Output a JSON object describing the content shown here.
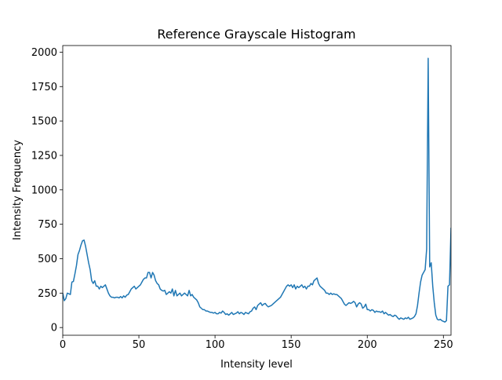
{
  "chart_data": {
    "type": "line",
    "title": "Reference Grayscale Histogram",
    "x_label": "Intensity level",
    "y_label": "Intensity Frequency",
    "x": [
      0,
      1,
      2,
      3,
      4,
      5,
      6,
      7,
      8,
      9,
      10,
      11,
      12,
      13,
      14,
      15,
      16,
      17,
      18,
      19,
      20,
      21,
      22,
      23,
      24,
      25,
      26,
      27,
      28,
      29,
      30,
      31,
      32,
      33,
      34,
      35,
      36,
      37,
      38,
      39,
      40,
      41,
      42,
      43,
      44,
      45,
      46,
      47,
      48,
      49,
      50,
      51,
      52,
      53,
      54,
      55,
      56,
      57,
      58,
      59,
      60,
      61,
      62,
      63,
      64,
      65,
      66,
      67,
      68,
      69,
      70,
      71,
      72,
      73,
      74,
      75,
      76,
      77,
      78,
      79,
      80,
      81,
      82,
      83,
      84,
      85,
      86,
      87,
      88,
      89,
      90,
      91,
      92,
      93,
      94,
      95,
      96,
      97,
      98,
      99,
      100,
      101,
      102,
      103,
      104,
      105,
      106,
      107,
      108,
      109,
      110,
      111,
      112,
      113,
      114,
      115,
      116,
      117,
      118,
      119,
      120,
      121,
      122,
      123,
      124,
      125,
      126,
      127,
      128,
      129,
      130,
      131,
      132,
      133,
      134,
      135,
      136,
      137,
      138,
      139,
      140,
      141,
      142,
      143,
      144,
      145,
      146,
      147,
      148,
      149,
      150,
      151,
      152,
      153,
      154,
      155,
      156,
      157,
      158,
      159,
      160,
      161,
      162,
      163,
      164,
      165,
      166,
      167,
      168,
      169,
      170,
      171,
      172,
      173,
      174,
      175,
      176,
      177,
      178,
      179,
      180,
      181,
      182,
      183,
      184,
      185,
      186,
      187,
      188,
      189,
      190,
      191,
      192,
      193,
      194,
      195,
      196,
      197,
      198,
      199,
      200,
      201,
      202,
      203,
      204,
      205,
      206,
      207,
      208,
      209,
      210,
      211,
      212,
      213,
      214,
      215,
      216,
      217,
      218,
      219,
      220,
      221,
      222,
      223,
      224,
      225,
      226,
      227,
      228,
      229,
      230,
      231,
      232,
      233,
      234,
      235,
      236,
      237,
      238,
      239,
      240,
      241,
      242,
      243,
      244,
      245,
      246,
      247,
      248,
      249,
      250,
      251,
      252,
      253,
      254,
      255
    ],
    "series": [
      {
        "color": "#1f77b4",
        "values": [
          250,
          195,
          210,
          250,
          245,
          240,
          330,
          335,
          390,
          450,
          530,
          560,
          600,
          630,
          635,
          590,
          530,
          470,
          420,
          340,
          320,
          340,
          300,
          300,
          280,
          300,
          290,
          300,
          310,
          280,
          250,
          230,
          220,
          220,
          215,
          220,
          220,
          215,
          225,
          215,
          230,
          220,
          235,
          240,
          260,
          280,
          290,
          300,
          280,
          290,
          300,
          310,
          330,
          350,
          360,
          360,
          400,
          400,
          360,
          400,
          380,
          340,
          320,
          310,
          280,
          270,
          265,
          270,
          240,
          250,
          260,
          250,
          280,
          230,
          270,
          230,
          240,
          250,
          230,
          240,
          250,
          240,
          230,
          270,
          230,
          240,
          220,
          210,
          200,
          180,
          150,
          140,
          130,
          130,
          120,
          120,
          115,
          110,
          110,
          105,
          110,
          100,
          100,
          110,
          105,
          120,
          110,
          95,
          100,
          90,
          100,
          110,
          95,
          100,
          105,
          115,
          100,
          110,
          105,
          95,
          110,
          105,
          100,
          115,
          120,
          140,
          150,
          130,
          160,
          170,
          180,
          160,
          170,
          175,
          160,
          150,
          155,
          160,
          170,
          180,
          190,
          200,
          210,
          220,
          240,
          260,
          280,
          300,
          310,
          300,
          310,
          290,
          310,
          280,
          300,
          290,
          300,
          310,
          290,
          300,
          280,
          300,
          300,
          320,
          310,
          340,
          350,
          360,
          320,
          300,
          290,
          280,
          270,
          250,
          250,
          240,
          250,
          240,
          245,
          240,
          240,
          230,
          220,
          210,
          190,
          170,
          160,
          170,
          180,
          175,
          180,
          190,
          180,
          150,
          170,
          180,
          170,
          140,
          150,
          170,
          130,
          130,
          120,
          130,
          125,
          110,
          120,
          115,
          115,
          110,
          120,
          100,
          110,
          100,
          90,
          95,
          85,
          80,
          90,
          85,
          70,
          60,
          70,
          65,
          60,
          70,
          65,
          75,
          60,
          65,
          70,
          80,
          100,
          160,
          250,
          330,
          380,
          400,
          420,
          570,
          1955,
          440,
          470,
          300,
          180,
          90,
          60,
          55,
          60,
          50,
          45,
          40,
          50,
          300,
          310,
          725
        ]
      }
    ],
    "xlim": [
      0,
      255
    ],
    "ylim": [
      -56,
      2048
    ],
    "xticks": [
      0,
      50,
      100,
      150,
      200,
      250
    ],
    "yticks": [
      0,
      250,
      500,
      750,
      1000,
      1250,
      1500,
      1750,
      2000
    ]
  }
}
